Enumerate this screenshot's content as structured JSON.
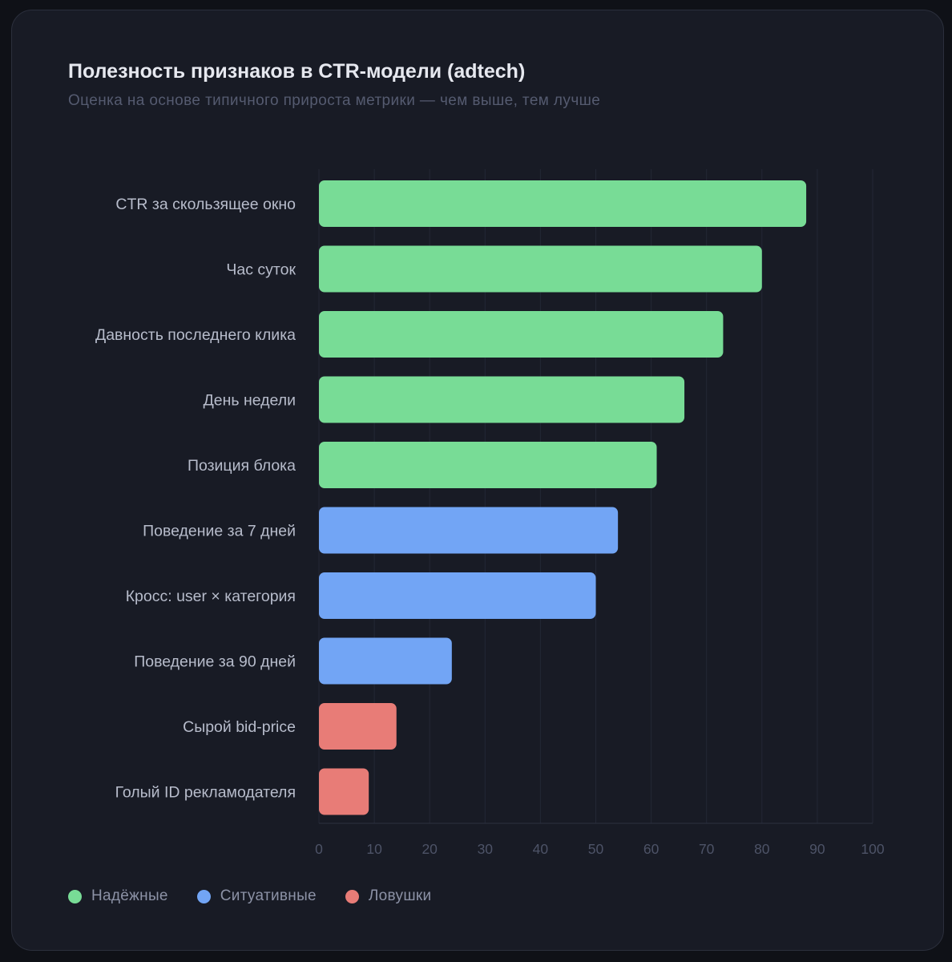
{
  "header": {
    "title": "Полезность признаков в CTR-модели (adtech)",
    "subtitle": "Оценка на основе типичного прироста метрики — чем выше, тем лучше"
  },
  "colors": {
    "reliable": "#78dc96",
    "situational": "#72a5f5",
    "trap": "#e87c77",
    "grid": "#232735",
    "axis": "#2c3140"
  },
  "legend": [
    {
      "key": "reliable",
      "label": "Надёжные",
      "color": "#78dc96"
    },
    {
      "key": "situational",
      "label": "Ситуативные",
      "color": "#72a5f5"
    },
    {
      "key": "trap",
      "label": "Ловушки",
      "color": "#e87c77"
    }
  ],
  "chart_data": {
    "type": "bar",
    "orientation": "horizontal",
    "title": "Полезность признаков в CTR-модели (adtech)",
    "subtitle": "Оценка на основе типичного прироста метрики — чем выше, тем лучше",
    "xlim": [
      0,
      100
    ],
    "x_ticks": [
      0,
      10,
      20,
      30,
      40,
      50,
      60,
      70,
      80,
      90,
      100
    ],
    "grid": true,
    "legend_position": "bottom-left",
    "categories": [
      "CTR за скользящее окно",
      "Час суток",
      "Давность последнего клика",
      "День недели",
      "Позиция блока",
      "Поведение за 7 дней",
      "Кросс: user × категория",
      "Поведение за 90 дней",
      "Сырой bid-price",
      "Голый ID рекламодателя"
    ],
    "values": [
      88,
      80,
      73,
      66,
      61,
      54,
      50,
      24,
      14,
      9
    ],
    "groups": [
      "reliable",
      "reliable",
      "reliable",
      "reliable",
      "reliable",
      "situational",
      "situational",
      "situational",
      "trap",
      "trap"
    ]
  }
}
